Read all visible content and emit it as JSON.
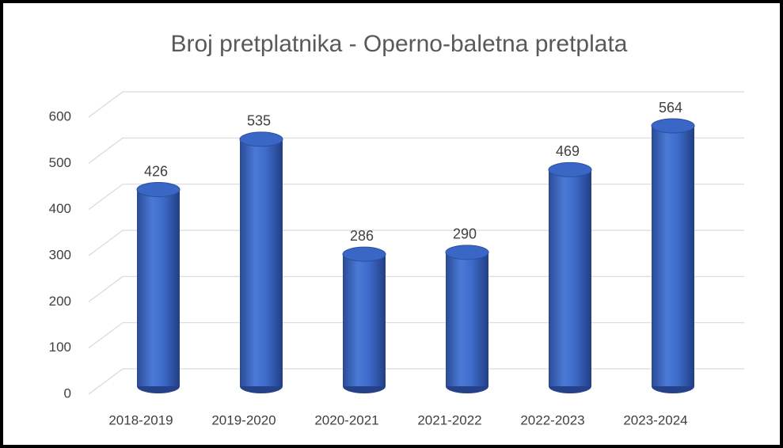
{
  "chart_data": {
    "type": "bar",
    "title": "Broj pretplatnika - Operno-baletna pretplata",
    "categories": [
      "2018-2019",
      "2019-2020",
      "2020-2021",
      "2021-2022",
      "2022-2023",
      "2023-2024"
    ],
    "values": [
      426,
      535,
      286,
      290,
      469,
      564
    ],
    "color": "#4472c4",
    "ylim": [
      0,
      600
    ],
    "yticks": [
      0,
      100,
      200,
      300,
      400,
      500,
      600
    ],
    "grid": true
  }
}
